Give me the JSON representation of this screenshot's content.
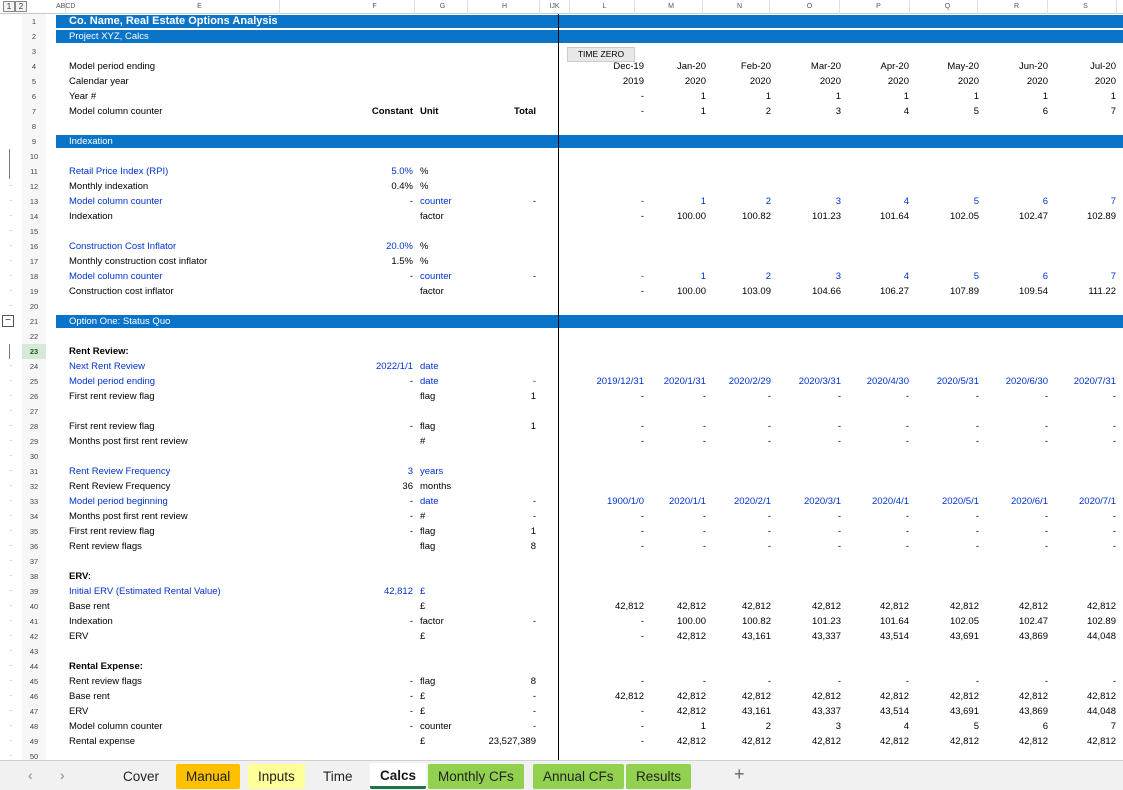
{
  "outline_levels": [
    "1",
    "2"
  ],
  "columns": [
    "ABCD",
    "E",
    "F",
    "G",
    "H",
    "IJK",
    "L",
    "M",
    "N",
    "O",
    "P",
    "Q",
    "R",
    "S"
  ],
  "time_zero_label": "TIME ZERO",
  "rows": [
    {
      "n": "1",
      "kind": "title",
      "E": "Co. Name, Real Estate Options Analysis"
    },
    {
      "n": "2",
      "kind": "band",
      "E": "Project XYZ, Calcs"
    },
    {
      "n": "3"
    },
    {
      "n": "4",
      "E": "Model period ending",
      "vals": [
        "Dec-19",
        "Jan-20",
        "Feb-20",
        "Mar-20",
        "Apr-20",
        "May-20",
        "Jun-20",
        "Jul-20"
      ]
    },
    {
      "n": "5",
      "E": "Calendar year",
      "vals": [
        "2019",
        "2020",
        "2020",
        "2020",
        "2020",
        "2020",
        "2020",
        "2020"
      ]
    },
    {
      "n": "6",
      "E": "Year #",
      "vals": [
        "-",
        "1",
        "1",
        "1",
        "1",
        "1",
        "1",
        "1"
      ]
    },
    {
      "n": "7",
      "E": "Model column counter",
      "F": "Constant",
      "G": "Unit",
      "H": "Total",
      "hdrbold": true,
      "vals": [
        "-",
        "1",
        "2",
        "3",
        "4",
        "5",
        "6",
        "7"
      ]
    },
    {
      "n": "8"
    },
    {
      "n": "9",
      "kind": "band",
      "E": "Indexation"
    },
    {
      "n": "10",
      "gut": "bar"
    },
    {
      "n": "11",
      "gut": "bar",
      "blue": true,
      "E": "Retail Price Index (RPI)",
      "F": "5.0%",
      "G": "%",
      "Fblue": true
    },
    {
      "n": "12",
      "gut": "dot",
      "E": "Monthly indexation",
      "F": "0.4%",
      "G": "%"
    },
    {
      "n": "13",
      "gut": "dot",
      "blue": true,
      "E": "Model column counter",
      "F": "-",
      "G": "counter",
      "H": "-",
      "Gblue": true,
      "valblue": true,
      "vals": [
        "-",
        "1",
        "2",
        "3",
        "4",
        "5",
        "6",
        "7"
      ]
    },
    {
      "n": "14",
      "gut": "dot",
      "E": "Indexation",
      "G": "factor",
      "vals": [
        "-",
        "100.00",
        "100.82",
        "101.23",
        "101.64",
        "102.05",
        "102.47",
        "102.89"
      ]
    },
    {
      "n": "15",
      "gut": "dot"
    },
    {
      "n": "16",
      "gut": "dot",
      "blue": true,
      "E": "Construction Cost Inflator",
      "F": "20.0%",
      "G": "%",
      "Fblue": true
    },
    {
      "n": "17",
      "gut": "dot",
      "E": "Monthly construction cost inflator",
      "F": "1.5%",
      "G": "%"
    },
    {
      "n": "18",
      "gut": "dot",
      "blue": true,
      "E": "Model column counter",
      "F": "-",
      "G": "counter",
      "H": "-",
      "Gblue": true,
      "valblue": true,
      "vals": [
        "-",
        "1",
        "2",
        "3",
        "4",
        "5",
        "6",
        "7"
      ]
    },
    {
      "n": "19",
      "gut": "dot",
      "E": "Construction cost inflator",
      "G": "factor",
      "vals": [
        "-",
        "100.00",
        "103.09",
        "104.66",
        "106.27",
        "107.89",
        "109.54",
        "111.22"
      ]
    },
    {
      "n": "20",
      "gut": "dot"
    },
    {
      "n": "21",
      "kind": "band",
      "gut": "box",
      "E": "Option One: Status Quo"
    },
    {
      "n": "22"
    },
    {
      "n": "23",
      "gut": "bar",
      "sel": true,
      "E": "Rent Review:",
      "bold": true
    },
    {
      "n": "24",
      "gut": "dot",
      "blue": true,
      "E": "Next Rent Review",
      "F": "2022/1/1",
      "G": "date",
      "Fblue": true,
      "Gblue": true
    },
    {
      "n": "25",
      "gut": "dot",
      "blue": true,
      "E": "Model period ending",
      "F": "-",
      "G": "date",
      "H": "-",
      "Gblue": true,
      "Hblue": true,
      "valblue": true,
      "vals": [
        "2019/12/31",
        "2020/1/31",
        "2020/2/29",
        "2020/3/31",
        "2020/4/30",
        "2020/5/31",
        "2020/6/30",
        "2020/7/31"
      ]
    },
    {
      "n": "26",
      "gut": "dot",
      "E": "First rent review flag",
      "G": "flag",
      "H": "1",
      "vals": [
        "-",
        "-",
        "-",
        "-",
        "-",
        "-",
        "-",
        "-"
      ]
    },
    {
      "n": "27",
      "gut": "dot"
    },
    {
      "n": "28",
      "gut": "dot",
      "E": "First rent review flag",
      "F": "-",
      "G": "flag",
      "H": "1",
      "vals": [
        "-",
        "-",
        "-",
        "-",
        "-",
        "-",
        "-",
        "-"
      ]
    },
    {
      "n": "29",
      "gut": "dot",
      "E": "Months post first rent review",
      "G": "#",
      "vals": [
        "-",
        "-",
        "-",
        "-",
        "-",
        "-",
        "-",
        "-"
      ]
    },
    {
      "n": "30",
      "gut": "dot"
    },
    {
      "n": "31",
      "gut": "dot",
      "blue": true,
      "E": "Rent Review Frequency",
      "F": "3",
      "G": "years",
      "Fblue": true,
      "Gblue": true
    },
    {
      "n": "32",
      "gut": "dot",
      "E": "Rent Review Frequency",
      "F": "36",
      "G": "months"
    },
    {
      "n": "33",
      "gut": "dot",
      "blue": true,
      "E": "Model period beginning",
      "F": "-",
      "G": "date",
      "H": "-",
      "Gblue": true,
      "valblue": true,
      "vals": [
        "1900/1/0",
        "2020/1/1",
        "2020/2/1",
        "2020/3/1",
        "2020/4/1",
        "2020/5/1",
        "2020/6/1",
        "2020/7/1"
      ]
    },
    {
      "n": "34",
      "gut": "dot",
      "E": "Months post first rent review",
      "F": "-",
      "G": "#",
      "H": "-",
      "vals": [
        "-",
        "-",
        "-",
        "-",
        "-",
        "-",
        "-",
        "-"
      ]
    },
    {
      "n": "35",
      "gut": "dot",
      "E": "First rent review flag",
      "F": "-",
      "G": "flag",
      "H": "1",
      "vals": [
        "-",
        "-",
        "-",
        "-",
        "-",
        "-",
        "-",
        "-"
      ]
    },
    {
      "n": "36",
      "gut": "dot",
      "E": "Rent review flags",
      "G": "flag",
      "H": "8",
      "vals": [
        "-",
        "-",
        "-",
        "-",
        "-",
        "-",
        "-",
        "-"
      ]
    },
    {
      "n": "37",
      "gut": "dot"
    },
    {
      "n": "38",
      "gut": "dot",
      "E": "ERV:",
      "bold": true
    },
    {
      "n": "39",
      "gut": "dot",
      "blue": true,
      "E": "Initial ERV (Estimated Rental Value)",
      "F": "42,812",
      "G": "£",
      "Fblue": true,
      "Gblue": true
    },
    {
      "n": "40",
      "gut": "dot",
      "E": "Base rent",
      "G": "£",
      "vals": [
        "42,812",
        "42,812",
        "42,812",
        "42,812",
        "42,812",
        "42,812",
        "42,812",
        "42,812"
      ]
    },
    {
      "n": "41",
      "gut": "dot",
      "E": "Indexation",
      "F": "-",
      "G": "factor",
      "H": "-",
      "vals": [
        "-",
        "100.00",
        "100.82",
        "101.23",
        "101.64",
        "102.05",
        "102.47",
        "102.89"
      ]
    },
    {
      "n": "42",
      "gut": "dot",
      "E": "ERV",
      "G": "£",
      "vals": [
        "-",
        "42,812",
        "43,161",
        "43,337",
        "43,514",
        "43,691",
        "43,869",
        "44,048"
      ]
    },
    {
      "n": "43",
      "gut": "dot"
    },
    {
      "n": "44",
      "gut": "dot",
      "E": "Rental Expense:",
      "bold": true
    },
    {
      "n": "45",
      "gut": "dot",
      "E": "Rent review flags",
      "F": "-",
      "G": "flag",
      "H": "8",
      "vals": [
        "-",
        "-",
        "-",
        "-",
        "-",
        "-",
        "-",
        "-"
      ]
    },
    {
      "n": "46",
      "gut": "dot",
      "E": "Base rent",
      "F": "-",
      "G": "£",
      "H": "-",
      "vals": [
        "42,812",
        "42,812",
        "42,812",
        "42,812",
        "42,812",
        "42,812",
        "42,812",
        "42,812"
      ]
    },
    {
      "n": "47",
      "gut": "dot",
      "E": "ERV",
      "F": "-",
      "G": "£",
      "H": "-",
      "vals": [
        "-",
        "42,812",
        "43,161",
        "43,337",
        "43,514",
        "43,691",
        "43,869",
        "44,048"
      ]
    },
    {
      "n": "48",
      "gut": "dot",
      "E": "Model column counter",
      "F": "-",
      "G": "counter",
      "H": "-",
      "vals": [
        "-",
        "1",
        "2",
        "3",
        "4",
        "5",
        "6",
        "7"
      ]
    },
    {
      "n": "49",
      "gut": "dot",
      "E": "Rental expense",
      "G": "£",
      "H": "23,527,389",
      "vals": [
        "-",
        "42,812",
        "42,812",
        "42,812",
        "42,812",
        "42,812",
        "42,812",
        "42,812"
      ]
    },
    {
      "n": "50",
      "gut": "dot"
    }
  ],
  "tabs": [
    {
      "label": "Cover",
      "bg": "",
      "active": false
    },
    {
      "label": "Manual",
      "bg": "#ffc000",
      "active": false
    },
    {
      "label": "Inputs",
      "bg": "#ffff99",
      "active": false
    },
    {
      "label": "Time",
      "bg": "",
      "active": false
    },
    {
      "label": "Calcs",
      "bg": "",
      "active": true
    },
    {
      "label": "Monthly CFs",
      "bg": "#92d050",
      "active": false
    },
    {
      "label": "Annual CFs",
      "bg": "#92d050",
      "active": false
    },
    {
      "label": "Results",
      "bg": "#92d050",
      "active": false
    }
  ],
  "nav": {
    "prev": "‹",
    "next": "›",
    "add": "+"
  },
  "colors": {
    "band": "#0a74c9",
    "input_blue": "#0033cc",
    "active_tab_underline": "#217346"
  }
}
